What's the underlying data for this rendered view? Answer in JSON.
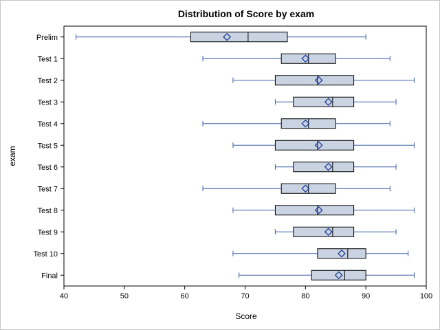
{
  "chart_data": {
    "type": "boxplot",
    "title": "Distribution of Score by exam",
    "xlabel": "Score",
    "ylabel": "exam",
    "xlim": [
      40,
      100
    ],
    "xticks": [
      40,
      50,
      60,
      70,
      80,
      90,
      100
    ],
    "orientation": "horizontal",
    "grid": false,
    "colors": {
      "box_fill": "#c9d3e2",
      "box_stroke": "#000000",
      "whisker": "#3a5ea8",
      "mean_marker": "#1f3f9a"
    },
    "series": [
      {
        "category": "Prelim",
        "min": 42,
        "q1": 61,
        "median": 70.5,
        "q3": 77,
        "max": 90,
        "mean": 67
      },
      {
        "category": "Test 1",
        "min": 63,
        "q1": 76,
        "median": 80.5,
        "q3": 85,
        "max": 94,
        "mean": 80
      },
      {
        "category": "Test 2",
        "min": 68,
        "q1": 75,
        "median": 82,
        "q3": 88,
        "max": 98,
        "mean": 82.2
      },
      {
        "category": "Test 3",
        "min": 75,
        "q1": 78,
        "median": 84.5,
        "q3": 88,
        "max": 95,
        "mean": 83.8
      },
      {
        "category": "Test 4",
        "min": 63,
        "q1": 76,
        "median": 80.5,
        "q3": 85,
        "max": 94,
        "mean": 80
      },
      {
        "category": "Test 5",
        "min": 68,
        "q1": 75,
        "median": 82,
        "q3": 88,
        "max": 98,
        "mean": 82.2
      },
      {
        "category": "Test 6",
        "min": 75,
        "q1": 78,
        "median": 84.5,
        "q3": 88,
        "max": 95,
        "mean": 83.8
      },
      {
        "category": "Test 7",
        "min": 63,
        "q1": 76,
        "median": 80.5,
        "q3": 85,
        "max": 94,
        "mean": 80
      },
      {
        "category": "Test 8",
        "min": 68,
        "q1": 75,
        "median": 82,
        "q3": 88,
        "max": 98,
        "mean": 82.2
      },
      {
        "category": "Test 9",
        "min": 75,
        "q1": 78,
        "median": 84.5,
        "q3": 88,
        "max": 95,
        "mean": 83.8
      },
      {
        "category": "Test 10",
        "min": 68,
        "q1": 82,
        "median": 87,
        "q3": 90,
        "max": 97,
        "mean": 86
      },
      {
        "category": "Final",
        "min": 69,
        "q1": 81,
        "median": 86.5,
        "q3": 90,
        "max": 98,
        "mean": 85.5
      }
    ]
  }
}
